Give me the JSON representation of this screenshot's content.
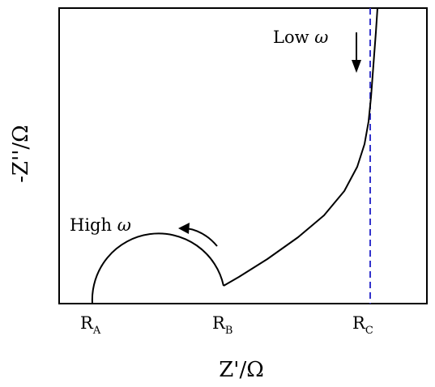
{
  "figure": {
    "x_axis_title": "Z'/Ω",
    "y_axis_title": "-Z''/Ω",
    "ticks": [
      {
        "main": "R",
        "sub": "A"
      },
      {
        "main": "R",
        "sub": "B"
      },
      {
        "main": "R",
        "sub": "C"
      }
    ],
    "annotations": {
      "high_freq": {
        "text": "High ",
        "omega": "ω"
      },
      "low_freq": {
        "text": "Low ",
        "omega": "ω"
      }
    },
    "colors": {
      "curve": "#000000",
      "frame": "#000000",
      "reference_line": "#3333cc"
    }
  }
}
